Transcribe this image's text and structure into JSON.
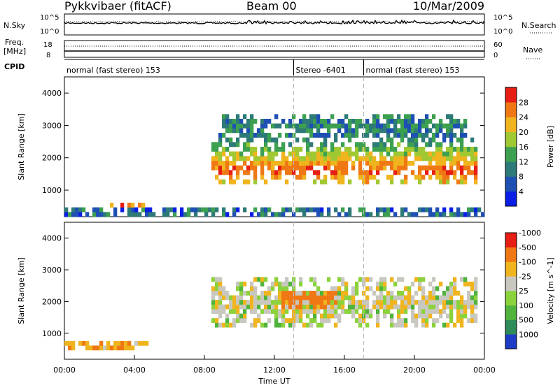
{
  "header": {
    "station": "Pykkvibaer (fitACF)",
    "beam": "Beam 00",
    "date": "10/Mar/2009"
  },
  "noise_panel": {
    "left_label": "N.Sky",
    "left_ticks": [
      "10^5",
      "10^0"
    ],
    "right_label": "N.Search",
    "right_ticks": [
      "10^5",
      "10^0"
    ]
  },
  "freq_panel": {
    "left_label_top": "Freq.",
    "left_label_bottom": "[MHz]",
    "left_ticks": [
      "18",
      "8"
    ],
    "right_label": "Nave",
    "right_ticks": [
      "60",
      "0"
    ]
  },
  "cpid_panel": {
    "label": "CPID",
    "segments": [
      {
        "text": "normal (fast stereo) 153",
        "start_hour": 0,
        "end_hour": 13.1
      },
      {
        "text": "Stereo -6401",
        "start_hour": 13.1,
        "end_hour": 17.1
      },
      {
        "text": "normal (fast stereo) 153",
        "start_hour": 17.1,
        "end_hour": 24
      }
    ]
  },
  "x_axis": {
    "label": "Time UT",
    "ticks": [
      "00:00",
      "04:00",
      "08:00",
      "12:00",
      "16:00",
      "20:00",
      "00:00"
    ]
  },
  "chart_data": [
    {
      "type": "heatmap",
      "title": "",
      "ylabel": "Slant Range [km]",
      "xlabel": "Time UT",
      "xlim_hours": [
        0,
        24
      ],
      "ylim": [
        180,
        4500
      ],
      "yticks": [
        1000,
        2000,
        3000,
        4000
      ],
      "colorbar": {
        "label": "Power [dB]",
        "ticks": [
          4,
          8,
          12,
          16,
          20,
          24,
          28
        ],
        "range": [
          0,
          30
        ],
        "colors": [
          "#0a1ee6",
          "#1e50b4",
          "#2d7a78",
          "#3ca050",
          "#a0c832",
          "#f0b41e",
          "#f07814",
          "#e61e14"
        ]
      },
      "features": [
        {
          "desc": "near-range scatter",
          "hours": [
            0,
            24
          ],
          "range_km": [
            200,
            450
          ],
          "level": 8
        },
        {
          "desc": "early patch",
          "hours": [
            2.5,
            4.5
          ],
          "range_km": [
            400,
            600
          ],
          "level": 22
        },
        {
          "desc": "main echo band",
          "hours": [
            8.5,
            23.5
          ],
          "range_km": [
            1200,
            2700
          ],
          "level": 24
        },
        {
          "desc": "upper diffuse echoes",
          "hours": [
            9,
            23
          ],
          "range_km": [
            2700,
            3300
          ],
          "level": 10
        }
      ]
    },
    {
      "type": "heatmap",
      "title": "",
      "ylabel": "Slant Range [km]",
      "xlabel": "Time UT",
      "xlim_hours": [
        0,
        24
      ],
      "ylim": [
        180,
        4500
      ],
      "yticks": [
        1000,
        2000,
        3000,
        4000
      ],
      "colorbar": {
        "label": "Velocity [m s^-1]",
        "ticks": [
          1000,
          500,
          100,
          25,
          -25,
          -100,
          -500,
          -1000
        ],
        "colors": [
          "#1e3cc8",
          "#2d8c5a",
          "#50b43c",
          "#8cd23c",
          "#c8c8c0",
          "#f0b41e",
          "#f07814",
          "#e61e14"
        ]
      },
      "features": [
        {
          "desc": "ground scatter band",
          "hours": [
            8.5,
            23.5
          ],
          "range_km": [
            1200,
            2700
          ],
          "velocity": 0
        },
        {
          "desc": "negative velocity patch",
          "hours": [
            12.5,
            15.5
          ],
          "range_km": [
            1800,
            2400
          ],
          "velocity": -300
        },
        {
          "desc": "early negative patch",
          "hours": [
            0,
            5
          ],
          "range_km": [
            400,
            800
          ],
          "velocity": -80
        }
      ]
    }
  ]
}
